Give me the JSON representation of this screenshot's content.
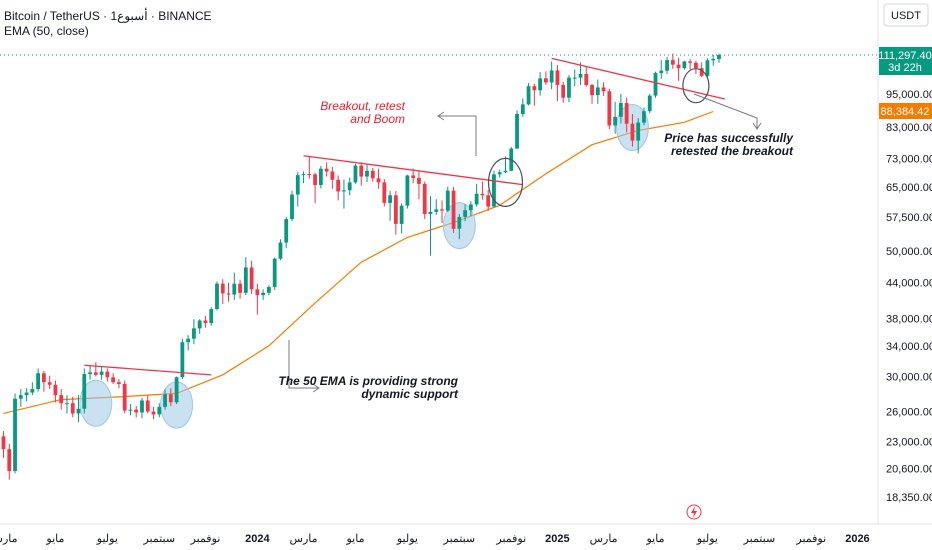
{
  "header": {
    "symbol_line": "Bitcoin / TetherUS · 1أسبوع · BINANCE",
    "indicator_line": "EMA (50, close)"
  },
  "toolbar": {
    "currency_label": "USDT"
  },
  "price_tags": {
    "last_price": "111,297.40",
    "countdown": "3d 22h",
    "ema_value": "88,384.42",
    "last_color": "#089981",
    "ema_color": "#f57c00"
  },
  "annotations": {
    "breakout_line1": "Breakout, retest",
    "breakout_line2": "and Boom",
    "ema_line1": "The 50 EMA is providing strong",
    "ema_line2": "dynamic support",
    "retest_line1": "Price has successfully",
    "retest_line2": "retested the breakout"
  },
  "icons": {
    "lightning": "lightning-icon"
  },
  "chart_data": {
    "type": "candlestick",
    "scale": "log",
    "colors": {
      "up": "#089981",
      "down": "#f23645",
      "ema": "#f57c00",
      "resistance": "#f23645",
      "highlight": "#9cc9e6"
    },
    "y_ticks": [
      "111,297.40",
      "95,000.00",
      "83,000.00",
      "73,000.00",
      "65,000.00",
      "57,500.00",
      "50,000.00",
      "44,000.00",
      "38,000.00",
      "34,000.00",
      "30,000.00",
      "26,000.00",
      "23,000.00",
      "20,600.00",
      "18,350.00"
    ],
    "y_tick_values": [
      111297.4,
      95000,
      83000,
      73000,
      65000,
      57500,
      50000,
      44000,
      38000,
      34000,
      30000,
      26000,
      23000,
      20600,
      18350
    ],
    "x_ticks": [
      {
        "label": "مارس",
        "week": 0
      },
      {
        "label": "مايو",
        "week": 9
      },
      {
        "label": "يوليو",
        "week": 18
      },
      {
        "label": "سبتمبر",
        "week": 27
      },
      {
        "label": "نوفمبر",
        "week": 35
      },
      {
        "label": "2024",
        "week": 44
      },
      {
        "label": "مارس",
        "week": 52
      },
      {
        "label": "مايو",
        "week": 61
      },
      {
        "label": "يوليو",
        "week": 70
      },
      {
        "label": "سبتمبر",
        "week": 79
      },
      {
        "label": "نوفمبر",
        "week": 88
      },
      {
        "label": "2025",
        "week": 96
      },
      {
        "label": "مارس",
        "week": 104
      },
      {
        "label": "مايو",
        "week": 113
      },
      {
        "label": "يوليو",
        "week": 122
      },
      {
        "label": "سبتمبر",
        "week": 131
      },
      {
        "label": "نوفمبر",
        "week": 140
      },
      {
        "label": "2026",
        "week": 148
      }
    ],
    "candles": [
      [
        23500,
        24000,
        21500,
        22300
      ],
      [
        22300,
        22800,
        19700,
        20400
      ],
      [
        20400,
        28000,
        20200,
        27400
      ],
      [
        27400,
        28500,
        26500,
        27800
      ],
      [
        27800,
        28600,
        27100,
        28100
      ],
      [
        28100,
        29300,
        27800,
        28500
      ],
      [
        28500,
        31000,
        28200,
        30400
      ],
      [
        30400,
        30700,
        28200,
        29300
      ],
      [
        29300,
        30100,
        28500,
        29000
      ],
      [
        29000,
        29500,
        27000,
        27800
      ],
      [
        27800,
        28500,
        26200,
        26900
      ],
      [
        26900,
        27800,
        25800,
        26900
      ],
      [
        26900,
        27600,
        25400,
        25800
      ],
      [
        25800,
        27800,
        24900,
        26300
      ],
      [
        26300,
        31000,
        25800,
        30300
      ],
      [
        30300,
        31400,
        29600,
        30500
      ],
      [
        30500,
        31800,
        30000,
        30200
      ],
      [
        30200,
        31200,
        29600,
        30600
      ],
      [
        30600,
        31000,
        29400,
        29900
      ],
      [
        29900,
        30400,
        29100,
        29300
      ],
      [
        29300,
        29700,
        28600,
        29100
      ],
      [
        29100,
        29500,
        25800,
        26100
      ],
      [
        26100,
        26800,
        25600,
        26200
      ],
      [
        26200,
        26600,
        25400,
        25900
      ],
      [
        25900,
        27500,
        25300,
        27200
      ],
      [
        27200,
        27800,
        25800,
        26000
      ],
      [
        26000,
        26500,
        25200,
        25700
      ],
      [
        25700,
        26900,
        25400,
        26500
      ],
      [
        26500,
        28400,
        26200,
        27900
      ],
      [
        27900,
        28600,
        26600,
        27000
      ],
      [
        27000,
        30000,
        26800,
        29900
      ],
      [
        29900,
        35000,
        29700,
        34500
      ],
      [
        34500,
        35500,
        33400,
        35000
      ],
      [
        35000,
        37900,
        34200,
        36500
      ],
      [
        36500,
        37900,
        35700,
        37700
      ],
      [
        37700,
        38400,
        36600,
        37300
      ],
      [
        37300,
        39800,
        36900,
        39500
      ],
      [
        39500,
        44200,
        39300,
        43800
      ],
      [
        43800,
        44600,
        40300,
        42100
      ],
      [
        42100,
        44000,
        40700,
        41900
      ],
      [
        41900,
        45800,
        41000,
        43800
      ],
      [
        43800,
        44500,
        41200,
        42200
      ],
      [
        42200,
        48800,
        41800,
        46800
      ],
      [
        46800,
        48100,
        42000,
        42800
      ],
      [
        42800,
        43800,
        38600,
        41800
      ],
      [
        41800,
        42800,
        41000,
        42200
      ],
      [
        42200,
        43500,
        41800,
        43200
      ],
      [
        43200,
        48700,
        42700,
        48500
      ],
      [
        48500,
        52500,
        48200,
        51800
      ],
      [
        51800,
        57500,
        50600,
        57000
      ],
      [
        57000,
        64000,
        56500,
        63000
      ],
      [
        63000,
        69000,
        60000,
        68200
      ],
      [
        68200,
        69200,
        66000,
        68500
      ],
      [
        68500,
        73800,
        67200,
        68400
      ],
      [
        68400,
        68900,
        60800,
        65500
      ],
      [
        65500,
        70800,
        64600,
        70000
      ],
      [
        70000,
        71800,
        67800,
        69200
      ],
      [
        69200,
        70500,
        64500,
        66900
      ],
      [
        66900,
        68100,
        61500,
        63800
      ],
      [
        63800,
        67000,
        59500,
        64100
      ],
      [
        64100,
        67500,
        62800,
        66200
      ],
      [
        66200,
        71400,
        65800,
        70900
      ],
      [
        70900,
        71900,
        65300,
        67800
      ],
      [
        67800,
        71500,
        66300,
        69400
      ],
      [
        69400,
        70200,
        66400,
        67300
      ],
      [
        67300,
        70000,
        64500,
        66200
      ],
      [
        66200,
        67100,
        60000,
        60900
      ],
      [
        60900,
        64000,
        56600,
        62800
      ],
      [
        62800,
        63900,
        53500,
        55900
      ],
      [
        55900,
        60800,
        53800,
        60200
      ],
      [
        60200,
        68300,
        59500,
        68100
      ],
      [
        68100,
        70000,
        66000,
        67400
      ],
      [
        67400,
        69300,
        61800,
        65800
      ],
      [
        65800,
        66400,
        57000,
        58200
      ],
      [
        58200,
        62600,
        49100,
        58700
      ],
      [
        58700,
        61800,
        58000,
        59300
      ],
      [
        59300,
        61500,
        56100,
        59000
      ],
      [
        59000,
        65100,
        58700,
        64000
      ],
      [
        64000,
        65000,
        53900,
        54800
      ],
      [
        54800,
        58200,
        52500,
        57500
      ],
      [
        57500,
        60500,
        56500,
        59100
      ],
      [
        59100,
        61300,
        57700,
        60500
      ],
      [
        60500,
        65800,
        60000,
        63200
      ],
      [
        63200,
        66500,
        61700,
        62800
      ],
      [
        62800,
        64200,
        58900,
        60000
      ],
      [
        60000,
        69400,
        59800,
        68400
      ],
      [
        68400,
        69700,
        67500,
        69000
      ],
      [
        69000,
        73600,
        68700,
        69400
      ],
      [
        69400,
        76500,
        69300,
        76000
      ],
      [
        76000,
        88800,
        75800,
        87500
      ],
      [
        87500,
        93200,
        86500,
        91000
      ],
      [
        91000,
        99300,
        90600,
        98000
      ],
      [
        98000,
        99000,
        90500,
        96400
      ],
      [
        96400,
        103800,
        94300,
        101200
      ],
      [
        101200,
        104100,
        98500,
        99500
      ],
      [
        99500,
        108400,
        96800,
        104500
      ],
      [
        104500,
        106800,
        92200,
        98500
      ],
      [
        98500,
        99800,
        91600,
        93500
      ],
      [
        93500,
        102500,
        91800,
        101500
      ],
      [
        101500,
        104900,
        98000,
        101500
      ],
      [
        101500,
        108000,
        98500,
        103000
      ],
      [
        103000,
        106000,
        97800,
        98500
      ],
      [
        98500,
        99000,
        91200,
        94500
      ],
      [
        94500,
        100700,
        91200,
        97500
      ],
      [
        97500,
        99600,
        94200,
        96000
      ],
      [
        96000,
        97000,
        82300,
        83500
      ],
      [
        83500,
        92000,
        80700,
        86500
      ],
      [
        86500,
        95000,
        84200,
        91500
      ],
      [
        91500,
        93600,
        81200,
        84100
      ],
      [
        84100,
        87500,
        76600,
        78500
      ],
      [
        78500,
        86000,
        74500,
        84500
      ],
      [
        84500,
        89800,
        83600,
        88500
      ],
      [
        88500,
        95000,
        87800,
        94300
      ],
      [
        94300,
        104000,
        93500,
        103400
      ],
      [
        103400,
        109000,
        101000,
        104400
      ],
      [
        104400,
        110500,
        103000,
        109000
      ],
      [
        109000,
        111900,
        105200,
        107000
      ],
      [
        107000,
        110000,
        100200,
        105500
      ],
      [
        105500,
        108700,
        104800,
        108400
      ],
      [
        108400,
        109500,
        105000,
        107800
      ],
      [
        107800,
        108700,
        103000,
        105500
      ],
      [
        105500,
        108000,
        101600,
        102200
      ],
      [
        102200,
        109800,
        101000,
        108900
      ],
      [
        108900,
        111300,
        106500,
        109500
      ],
      [
        109500,
        112000,
        107800,
        111297.4
      ]
    ],
    "ema": [
      [
        0,
        25800
      ],
      [
        10,
        27300
      ],
      [
        20,
        27600
      ],
      [
        30,
        28000
      ],
      [
        38,
        30200
      ],
      [
        46,
        34000
      ],
      [
        54,
        40500
      ],
      [
        62,
        47800
      ],
      [
        70,
        52900
      ],
      [
        78,
        56200
      ],
      [
        86,
        60300
      ],
      [
        94,
        68600
      ],
      [
        102,
        77200
      ],
      [
        110,
        81800
      ],
      [
        118,
        84600
      ],
      [
        123,
        88384.42
      ]
    ],
    "resistance_lines": [
      {
        "from": {
          "week": 14,
          "price": 31400
        },
        "to": {
          "week": 36,
          "price": 30200
        }
      },
      {
        "from": {
          "week": 52,
          "price": 73800
        },
        "to": {
          "week": 90,
          "price": 65600
        }
      },
      {
        "from": {
          "week": 95,
          "price": 109800
        },
        "to": {
          "week": 125,
          "price": 93000
        }
      }
    ],
    "highlight_circles": [
      {
        "week": 16,
        "price": 26900,
        "rx": 16,
        "ry": 23,
        "style": "filled"
      },
      {
        "week": 30,
        "price": 26700,
        "rx": 16,
        "ry": 23,
        "style": "filled"
      },
      {
        "week": 79,
        "price": 55500,
        "rx": 16,
        "ry": 23,
        "style": "filled"
      },
      {
        "week": 109,
        "price": 82800,
        "rx": 16,
        "ry": 23,
        "style": "filled"
      },
      {
        "week": 87,
        "price": 66200,
        "rx": 17,
        "ry": 24,
        "style": "ring"
      },
      {
        "week": 120,
        "price": 98200,
        "rx": 13,
        "ry": 17,
        "style": "ring"
      }
    ]
  }
}
